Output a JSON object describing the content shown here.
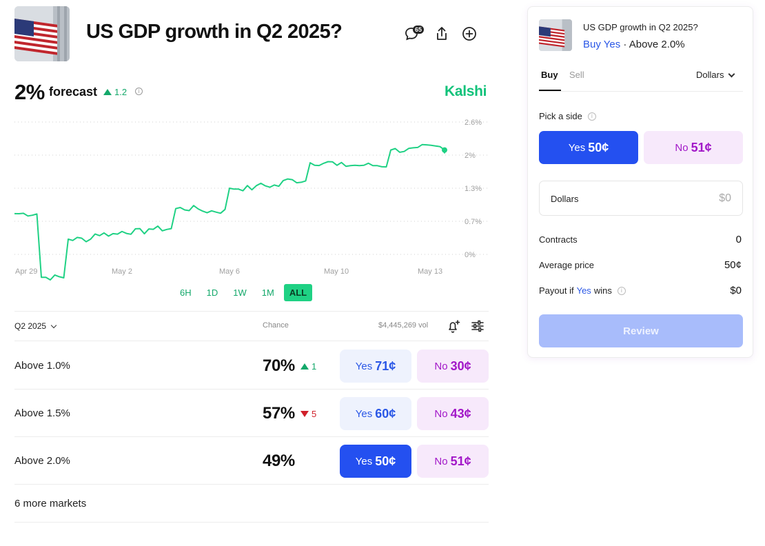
{
  "header": {
    "title": "US GDP growth in Q2 2025?",
    "comment_count": "65"
  },
  "forecast": {
    "value": "2%",
    "label": "forecast",
    "delta": "1.2",
    "brand": "Kalshi"
  },
  "chart_data": {
    "type": "line",
    "x_ticks": [
      "Apr 29",
      "May 2",
      "May 6",
      "May 10",
      "May 13"
    ],
    "y_ticks": [
      "2.6%",
      "2%",
      "1.3%",
      "0.7%",
      "0%"
    ],
    "ylim": [
      0,
      2.6
    ],
    "series": [
      {
        "color": "#1fd184",
        "x": [
          "Apr 28",
          "Apr 29",
          "Apr 30",
          "May 1",
          "May 2",
          "May 3",
          "May 4",
          "May 5",
          "May 6",
          "May 7",
          "May 8",
          "May 9",
          "May 10",
          "May 11",
          "May 12",
          "May 13",
          "May 14"
        ],
        "y": [
          0.8,
          -0.45,
          0.3,
          0.4,
          0.45,
          0.5,
          0.9,
          0.85,
          1.3,
          1.35,
          1.45,
          1.8,
          1.75,
          1.75,
          2.05,
          2.1,
          2.05
        ]
      }
    ],
    "grid": true
  },
  "ranges": [
    "6H",
    "1D",
    "1W",
    "1M",
    "ALL"
  ],
  "active_range": "ALL",
  "table": {
    "period": "Q2 2025",
    "chance_header": "Chance",
    "volume": "$4,445,269 vol",
    "rows": [
      {
        "label": "Above 1.0%",
        "chance": "70%",
        "delta": "1",
        "direction": "up",
        "yes": "Yes",
        "yes_price": "71¢",
        "no": "No",
        "no_price": "30¢",
        "selected": false
      },
      {
        "label": "Above 1.5%",
        "chance": "57%",
        "delta": "5",
        "direction": "down",
        "yes": "Yes",
        "yes_price": "60¢",
        "no": "No",
        "no_price": "43¢",
        "selected": false
      },
      {
        "label": "Above 2.0%",
        "chance": "49%",
        "delta": "",
        "direction": "",
        "yes": "Yes",
        "yes_price": "50¢",
        "no": "No",
        "no_price": "51¢",
        "selected": true
      }
    ],
    "more": "6 more markets"
  },
  "panel": {
    "title": "US GDP growth in Q2 2025?",
    "sub_action": "Buy Yes",
    "sub_sep": " · ",
    "sub_market": "Above 2.0%",
    "tab_buy": "Buy",
    "tab_sell": "Sell",
    "unit": "Dollars",
    "pick_label": "Pick a side",
    "yes_label": "Yes",
    "yes_price": "50¢",
    "no_label": "No",
    "no_price": "51¢",
    "amount_label": "Dollars",
    "amount_placeholder": "$0",
    "contracts_label": "Contracts",
    "contracts_value": "0",
    "avg_label": "Average price",
    "avg_value": "50¢",
    "payout_label_pre": "Payout if",
    "payout_label_yes": "Yes",
    "payout_label_post": "wins",
    "payout_value": "$0",
    "review": "Review"
  },
  "colors": {
    "accent_green": "#1fd184",
    "brand_green": "#11c27a",
    "yes_blue": "#2450f0",
    "no_purple": "#a218c8"
  }
}
